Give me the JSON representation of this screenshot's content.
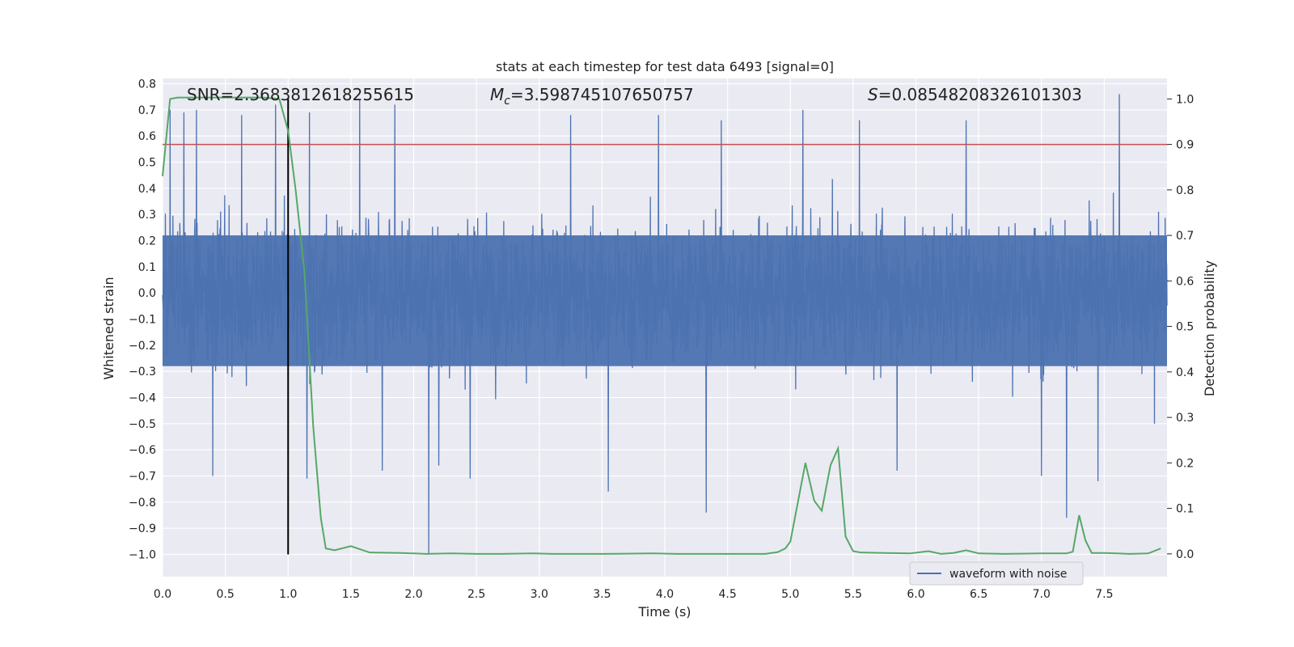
{
  "chart_data": {
    "type": "line",
    "title": "stats at each timestep for test data 6493 [signal=0]",
    "xlabel": "Time (s)",
    "ylabel_left": "Whitened strain",
    "ylabel_right": "Detection probability",
    "xlim": [
      0.0,
      8.0
    ],
    "ylim_left": [
      -1.085,
      0.82
    ],
    "ylim_right": [
      -0.05,
      1.045
    ],
    "x_ticks": [
      0.0,
      0.5,
      1.0,
      1.5,
      2.0,
      2.5,
      3.0,
      3.5,
      4.0,
      4.5,
      5.0,
      5.5,
      6.0,
      6.5,
      7.0,
      7.5
    ],
    "x_tick_labels": [
      "0.0",
      "0.5",
      "1.0",
      "1.5",
      "2.0",
      "2.5",
      "3.0",
      "3.5",
      "4.0",
      "4.5",
      "5.0",
      "5.5",
      "6.0",
      "6.5",
      "7.0",
      "7.5"
    ],
    "y_left_ticks": [
      0.8,
      0.7,
      0.6,
      0.5,
      0.4,
      0.3,
      0.2,
      0.1,
      0.0,
      -0.1,
      -0.2,
      -0.3,
      -0.4,
      -0.5,
      -0.6,
      -0.7,
      -0.8,
      -0.9,
      -1.0
    ],
    "y_left_tick_labels": [
      "0.8",
      "0.7",
      "0.6",
      "0.5",
      "0.4",
      "0.3",
      "0.2",
      "0.1",
      "0.0",
      "−0.1",
      "−0.2",
      "−0.3",
      "−0.4",
      "−0.5",
      "−0.6",
      "−0.7",
      "−0.8",
      "−0.9",
      "−1.0"
    ],
    "y_right_ticks": [
      1.0,
      0.9,
      0.8,
      0.7,
      0.6,
      0.5,
      0.4,
      0.3,
      0.2,
      0.1,
      0.0
    ],
    "y_right_tick_labels": [
      "1.0",
      "0.9",
      "0.8",
      "0.7",
      "0.6",
      "0.5",
      "0.4",
      "0.3",
      "0.2",
      "0.1",
      "0.0"
    ],
    "grid": true,
    "legend": {
      "placement": "lower-right",
      "entries": [
        "waveform with noise"
      ]
    },
    "stats": {
      "snr": "SNR=2.3683812618255615",
      "mc_symbol": "M",
      "mc_subscript": "c",
      "mc_value": "=3.598745107650757",
      "s_symbol": "S",
      "s_value": "=0.08548208326101303"
    },
    "threshold_probability": 0.9,
    "vertical_marker_time": 1.0,
    "series": [
      {
        "name": "waveform with noise",
        "axis": "left",
        "color": "#4c72b0",
        "envelope_typical_amplitude": 0.4,
        "x_start": 0.0,
        "x_end": 8.0,
        "spikes": [
          {
            "x": 0.06,
            "y": 0.7
          },
          {
            "x": 0.17,
            "y": 0.69
          },
          {
            "x": 0.27,
            "y": 0.7
          },
          {
            "x": 0.4,
            "y": -0.7
          },
          {
            "x": 0.63,
            "y": 0.68
          },
          {
            "x": 0.9,
            "y": 0.72
          },
          {
            "x": 1.17,
            "y": 0.69
          },
          {
            "x": 1.15,
            "y": -0.71
          },
          {
            "x": 1.57,
            "y": 0.74
          },
          {
            "x": 1.75,
            "y": -0.68
          },
          {
            "x": 1.85,
            "y": 0.72
          },
          {
            "x": 2.12,
            "y": -1.0
          },
          {
            "x": 2.2,
            "y": -0.66
          },
          {
            "x": 2.45,
            "y": -0.71
          },
          {
            "x": 3.25,
            "y": 0.68
          },
          {
            "x": 3.55,
            "y": -0.76
          },
          {
            "x": 3.95,
            "y": 0.68
          },
          {
            "x": 4.33,
            "y": -0.84
          },
          {
            "x": 4.45,
            "y": 0.66
          },
          {
            "x": 5.1,
            "y": 0.7
          },
          {
            "x": 5.55,
            "y": 0.66
          },
          {
            "x": 5.85,
            "y": -0.68
          },
          {
            "x": 6.4,
            "y": 0.66
          },
          {
            "x": 7.0,
            "y": -0.7
          },
          {
            "x": 7.2,
            "y": -0.86
          },
          {
            "x": 7.45,
            "y": -0.72
          },
          {
            "x": 7.62,
            "y": 0.76
          },
          {
            "x": 7.9,
            "y": -0.5
          }
        ]
      },
      {
        "name": "Detection probability",
        "axis": "right",
        "color": "#55a868",
        "x": [
          0.0,
          0.06,
          0.12,
          0.2,
          0.3,
          0.4,
          0.5,
          0.6,
          0.7,
          0.8,
          0.93,
          1.0,
          1.06,
          1.13,
          1.2,
          1.26,
          1.3,
          1.37,
          1.5,
          1.65,
          1.9,
          2.1,
          2.3,
          2.5,
          2.7,
          2.95,
          3.1,
          3.5,
          3.9,
          4.1,
          4.5,
          4.8,
          4.9,
          4.96,
          5.0,
          5.12,
          5.19,
          5.25,
          5.32,
          5.38,
          5.44,
          5.5,
          5.56,
          5.75,
          5.95,
          6.1,
          6.2,
          6.3,
          6.4,
          6.5,
          6.7,
          7.0,
          7.2,
          7.25,
          7.3,
          7.35,
          7.4,
          7.5,
          7.6,
          7.7,
          7.85,
          7.95
        ],
        "y": [
          0.83,
          1.0,
          1.003,
          1.003,
          1.003,
          1.003,
          1.003,
          1.003,
          1.003,
          1.003,
          1.0,
          0.93,
          0.8,
          0.62,
          0.28,
          0.08,
          0.012,
          0.008,
          0.017,
          0.003,
          0.002,
          0.0,
          0.001,
          0.0,
          0.0,
          0.001,
          0.0,
          0.0,
          0.001,
          0.0,
          0.0,
          0.0,
          0.004,
          0.012,
          0.027,
          0.2,
          0.117,
          0.095,
          0.195,
          0.232,
          0.038,
          0.006,
          0.003,
          0.002,
          0.001,
          0.006,
          0.0,
          0.002,
          0.008,
          0.001,
          0.0,
          0.001,
          0.001,
          0.005,
          0.085,
          0.03,
          0.002,
          0.002,
          0.001,
          0.0,
          0.001,
          0.012
        ]
      }
    ]
  }
}
